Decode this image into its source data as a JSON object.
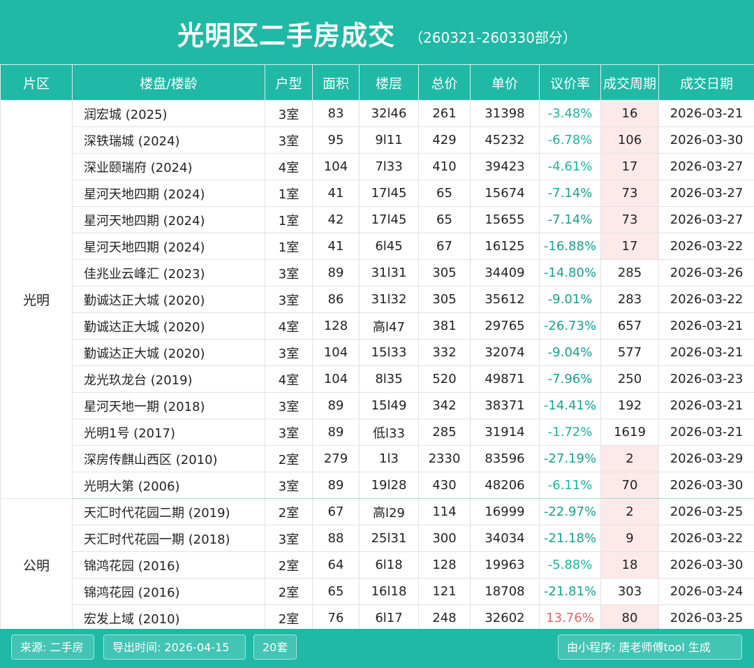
{
  "header": {
    "title": "光明区二手房成交",
    "subtitle": "（260321-260330部分）"
  },
  "columns": [
    "片区",
    "楼盘/楼龄",
    "户型",
    "面积",
    "楼层",
    "总价",
    "单价",
    "议价率",
    "成交周期",
    "成交日期"
  ],
  "groups": [
    {
      "district": "光明",
      "rows": [
        {
          "name": "润宏城 (2025)",
          "type": "3室",
          "area": "83",
          "floor": "32l46",
          "total": "261",
          "unit": "31398",
          "rate": "-3.48%",
          "cycle": "16",
          "date": "2026-03-21"
        },
        {
          "name": "深铁瑞城 (2024)",
          "type": "3室",
          "area": "95",
          "floor": "9l11",
          "total": "429",
          "unit": "45232",
          "rate": "-6.78%",
          "cycle": "106",
          "date": "2026-03-30"
        },
        {
          "name": "深业颐瑞府 (2024)",
          "type": "4室",
          "area": "104",
          "floor": "7l33",
          "total": "410",
          "unit": "39423",
          "rate": "-4.61%",
          "cycle": "17",
          "date": "2026-03-27"
        },
        {
          "name": "星河天地四期 (2024)",
          "type": "1室",
          "area": "41",
          "floor": "17l45",
          "total": "65",
          "unit": "15674",
          "rate": "-7.14%",
          "cycle": "73",
          "date": "2026-03-27"
        },
        {
          "name": "星河天地四期 (2024)",
          "type": "1室",
          "area": "42",
          "floor": "17l45",
          "total": "65",
          "unit": "15655",
          "rate": "-7.14%",
          "cycle": "73",
          "date": "2026-03-27"
        },
        {
          "name": "星河天地四期 (2024)",
          "type": "1室",
          "area": "41",
          "floor": "6l45",
          "total": "67",
          "unit": "16125",
          "rate": "-16.88%",
          "cycle": "17",
          "date": "2026-03-22"
        },
        {
          "name": "佳兆业云峰汇 (2023)",
          "type": "3室",
          "area": "89",
          "floor": "31l31",
          "total": "305",
          "unit": "34409",
          "rate": "-14.80%",
          "cycle": "285",
          "date": "2026-03-26"
        },
        {
          "name": "勤诚达正大城 (2020)",
          "type": "3室",
          "area": "86",
          "floor": "31l32",
          "total": "305",
          "unit": "35612",
          "rate": "-9.01%",
          "cycle": "283",
          "date": "2026-03-22"
        },
        {
          "name": "勤诚达正大城 (2020)",
          "type": "4室",
          "area": "128",
          "floor": "高l47",
          "total": "381",
          "unit": "29765",
          "rate": "-26.73%",
          "cycle": "657",
          "date": "2026-03-21"
        },
        {
          "name": "勤诚达正大城 (2020)",
          "type": "3室",
          "area": "104",
          "floor": "15l33",
          "total": "332",
          "unit": "32074",
          "rate": "-9.04%",
          "cycle": "577",
          "date": "2026-03-21"
        },
        {
          "name": "龙光玖龙台 (2019)",
          "type": "4室",
          "area": "104",
          "floor": "8l35",
          "total": "520",
          "unit": "49871",
          "rate": "-7.96%",
          "cycle": "250",
          "date": "2026-03-23"
        },
        {
          "name": "星河天地一期 (2018)",
          "type": "3室",
          "area": "89",
          "floor": "15l49",
          "total": "342",
          "unit": "38371",
          "rate": "-14.41%",
          "cycle": "192",
          "date": "2026-03-21"
        },
        {
          "name": "光明1号 (2017)",
          "type": "3室",
          "area": "89",
          "floor": "低l33",
          "total": "285",
          "unit": "31914",
          "rate": "-1.72%",
          "cycle": "1619",
          "date": "2026-03-21"
        },
        {
          "name": "深房传麒山西区 (2010)",
          "type": "2室",
          "area": "279",
          "floor": "1l3",
          "total": "2330",
          "unit": "83596",
          "rate": "-27.19%",
          "cycle": "2",
          "date": "2026-03-29"
        },
        {
          "name": "光明大第 (2006)",
          "type": "3室",
          "area": "89",
          "floor": "19l28",
          "total": "430",
          "unit": "48206",
          "rate": "-6.11%",
          "cycle": "70",
          "date": "2026-03-30"
        }
      ]
    },
    {
      "district": "公明",
      "rows": [
        {
          "name": "天汇时代花园二期 (2019)",
          "type": "2室",
          "area": "67",
          "floor": "高l29",
          "total": "114",
          "unit": "16999",
          "rate": "-22.97%",
          "cycle": "2",
          "date": "2026-03-25"
        },
        {
          "name": "天汇时代花园一期 (2018)",
          "type": "3室",
          "area": "88",
          "floor": "25l31",
          "total": "300",
          "unit": "34034",
          "rate": "-21.18%",
          "cycle": "9",
          "date": "2026-03-22"
        },
        {
          "name": "锦鸿花园 (2016)",
          "type": "2室",
          "area": "64",
          "floor": "6l18",
          "total": "128",
          "unit": "19963",
          "rate": "-5.88%",
          "cycle": "18",
          "date": "2026-03-30"
        },
        {
          "name": "锦鸿花园 (2016)",
          "type": "2室",
          "area": "65",
          "floor": "16l18",
          "total": "121",
          "unit": "18708",
          "rate": "-21.81%",
          "cycle": "303",
          "date": "2026-03-24"
        },
        {
          "name": "宏发上域 (2010)",
          "type": "2室",
          "area": "76",
          "floor": "6l17",
          "total": "248",
          "unit": "32602",
          "rate": "13.76%",
          "cycle": "80",
          "date": "2026-03-25"
        }
      ]
    }
  ],
  "footer": {
    "source": "来源: 二手房",
    "export_time": "导出时间: 2026-04-15",
    "count": "20套",
    "generator": "由小程序: 唐老师傅tool 生成"
  },
  "colors": {
    "header_bg": "#1fb9a6",
    "rate_discount": "#1db59f",
    "rate_premium": "#e06464",
    "short_cycle_bg": "#fde9e9"
  }
}
